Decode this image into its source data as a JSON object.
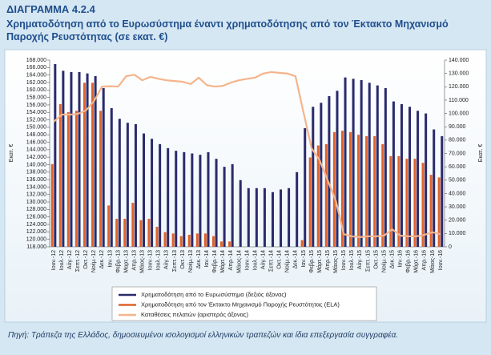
{
  "chart_data": {
    "type": "bar",
    "title": "ΔΙΑΓΡΑΜΜΑ 4.2.4",
    "subtitle": "Χρηματοδότηση από το Ευρωσύστημα έναντι χρηματοδότησης από τον Έκτακτο Μηχανισμό Παροχής Ρευστότητας (σε εκατ. €)",
    "y_label": "Εκατ. €",
    "y2_label": "Εκατ. €",
    "source": "Πηγή: Τράπεζα της Ελλάδος, δημοσιευμένοι ισολογισμοί ελληνικών τραπεζών και ίδια επεξεργασία συγγραφέα.",
    "categories": [
      "Ιουν.-12",
      "Ιουλ.-12",
      "Αύγ.-12",
      "Σεπτ.-12",
      "Οκτ.-12",
      "Νοέμ.-12",
      "Δεκ.-12",
      "Ιαν.-13",
      "Φεβρ.-13",
      "Μαρτ.-13",
      "Απρ.-13",
      "Μάιος-13",
      "Ιουν.-13",
      "Ιουλ.-13",
      "Αύγ.-13",
      "Σεπτ.-13",
      "Οκτ.-13",
      "Νοέμ.-13",
      "Δεκ.-13",
      "Ιαν.-14",
      "Φεβρ.-14",
      "Μάρτ.-14",
      "Απρ.-14",
      "Μάιος-14",
      "Ιουν.-14",
      "Ιουλ.-14",
      "Αύγ.-14",
      "Σεπτ.-14",
      "Οκτ.-14",
      "Νοέμ.-14",
      "Δεκ.-14",
      "Ιαν.-15",
      "Φεβρ.-15",
      "Μάρτ.-15",
      "Απρ.-15",
      "Μάιος-15",
      "Ιουν.-15",
      "Ιουλ.-15",
      "Αύγ.-15",
      "Σεπτ.-15",
      "Οκτ.-15",
      "Νοέμ.-15",
      "Δεκ.-15",
      "Ιαν.-16",
      "Φεβρ.-16",
      "Μάρτ.-16",
      "Απρ.-16",
      "Μάιος-16",
      "Ιουν.-16"
    ],
    "series": [
      {
        "name": "Χρηματοδότηση από το Ευρωσύστημα (δεξιός άξονας)",
        "color": "#2a2a6c",
        "axis": "y2",
        "type": "bar",
        "values": [
          137000,
          132000,
          131000,
          131000,
          130000,
          128000,
          119000,
          104000,
          96000,
          93000,
          92000,
          85000,
          81000,
          77000,
          74000,
          72000,
          71000,
          70000,
          69000,
          71000,
          66000,
          60000,
          62000,
          50000,
          44000,
          44000,
          44000,
          41000,
          43000,
          44000,
          56000,
          89000,
          105000,
          108000,
          113000,
          117000,
          127000,
          126000,
          125000,
          123000,
          121000,
          119000,
          109000,
          107000,
          105000,
          102000,
          100000,
          88000,
          83000
        ]
      },
      {
        "name": "Χρηματοδότηση από τον Έκτακτο Μηχανισμό Παροχής Ρευστότητας (ELA)",
        "color": "#e0622a",
        "axis": "y2",
        "type": "bar",
        "values": [
          62000,
          107000,
          101000,
          102000,
          123000,
          123000,
          102000,
          31000,
          21000,
          21000,
          33000,
          20000,
          21000,
          15000,
          11000,
          10000,
          8000,
          9000,
          10000,
          10000,
          8000,
          4000,
          4000,
          0,
          0,
          0,
          0,
          0,
          0,
          0,
          0,
          5000,
          67000,
          76000,
          77000,
          86000,
          87000,
          86000,
          84000,
          83000,
          83000,
          77000,
          68000,
          68000,
          66000,
          66000,
          63000,
          54000,
          52000
        ]
      },
      {
        "name": "Καταθέσεις πελατών (αριστερός άξονας)",
        "color": "#f5b48c",
        "axis": "y",
        "type": "line",
        "values": [
          151500,
          153400,
          153400,
          153600,
          154500,
          157000,
          160900,
          161000,
          160900,
          163700,
          164100,
          162600,
          163500,
          163000,
          162600,
          162400,
          162200,
          161600,
          163300,
          161300,
          160900,
          161100,
          162000,
          162600,
          163000,
          163300,
          164400,
          164800,
          164600,
          164400,
          163700,
          154000,
          144400,
          141200,
          135800,
          130400,
          121400,
          120800,
          120600,
          120800,
          120800,
          121000,
          122700,
          121000,
          120800,
          120800,
          121200,
          121900,
          121400
        ]
      }
    ],
    "ylim": [
      118000,
      168000
    ],
    "yticks": [
      {
        "value": 118000,
        "label": "118.000"
      },
      {
        "value": 120000,
        "label": "120.000"
      },
      {
        "value": 122000,
        "label": "122.000"
      },
      {
        "value": 124000,
        "label": "124.000"
      },
      {
        "value": 126000,
        "label": "126.000"
      },
      {
        "value": 128000,
        "label": "128.000"
      },
      {
        "value": 130000,
        "label": "130.000"
      },
      {
        "value": 132000,
        "label": "132.000"
      },
      {
        "value": 134000,
        "label": "134.000"
      },
      {
        "value": 136000,
        "label": "136.000"
      },
      {
        "value": 138000,
        "label": "138.000"
      },
      {
        "value": 140000,
        "label": "140.000"
      },
      {
        "value": 142000,
        "label": "142.000"
      },
      {
        "value": 144000,
        "label": "144.000"
      },
      {
        "value": 146000,
        "label": "146.000"
      },
      {
        "value": 148000,
        "label": "148.000"
      },
      {
        "value": 150000,
        "label": "150.000"
      },
      {
        "value": 152000,
        "label": "152.000"
      },
      {
        "value": 154000,
        "label": "154.000"
      },
      {
        "value": 156000,
        "label": "156.000"
      },
      {
        "value": 158000,
        "label": "158.000"
      },
      {
        "value": 160000,
        "label": "160.000"
      },
      {
        "value": 162000,
        "label": "162.000"
      },
      {
        "value": 164000,
        "label": "164.000"
      },
      {
        "value": 166000,
        "label": "166.000"
      },
      {
        "value": 168000,
        "label": "168.000"
      }
    ],
    "y2lim": [
      0,
      140000
    ],
    "y2ticks": [
      0,
      {
        "value": 10000,
        "label": "10.000"
      },
      {
        "value": 20000,
        "label": "20.000"
      },
      {
        "value": 30000,
        "label": "30.000"
      },
      {
        "value": 40000,
        "label": "40.000"
      },
      {
        "value": 50000,
        "label": "50.000"
      },
      {
        "value": 60000,
        "label": "60.000"
      },
      {
        "value": 70000,
        "label": "70.000"
      },
      {
        "value": 80000,
        "label": "80.000"
      },
      {
        "value": 90000,
        "label": "90.000"
      },
      {
        "value": 100000,
        "label": "100.000"
      },
      {
        "value": 110000,
        "label": "110.000"
      },
      {
        "value": 120000,
        "label": "120.000"
      },
      {
        "value": 130000,
        "label": "130.000"
      },
      {
        "value": 140000,
        "label": "140.000"
      }
    ],
    "legend": "bottom"
  }
}
